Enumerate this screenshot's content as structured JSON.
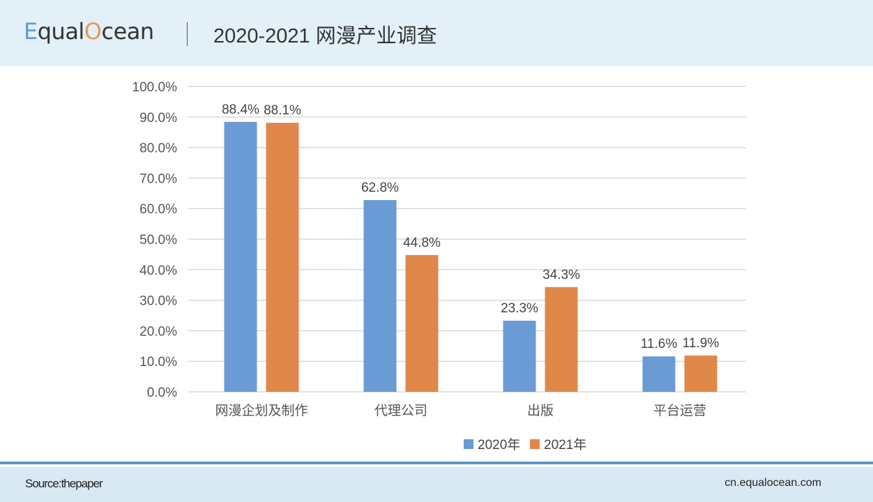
{
  "header": {
    "logo_text": "EqualOcean",
    "title": "2020-2021 网漫产业调查"
  },
  "footer": {
    "source": "Source:thepaper",
    "site": "cn.equalocean.com"
  },
  "colors": {
    "series_2020": "#6a9bd4",
    "series_2021": "#e0874a",
    "grid": "#d9d9d9"
  },
  "chart_data": {
    "type": "bar",
    "categories": [
      "网漫企划及制作",
      "代理公司",
      "出版",
      "平台运营"
    ],
    "series": [
      {
        "name": "2020年",
        "values": [
          88.4,
          62.8,
          23.3,
          11.6
        ],
        "labels": [
          "88.4%",
          "62.8%",
          "23.3%",
          "11.6%"
        ]
      },
      {
        "name": "2021年",
        "values": [
          88.1,
          44.8,
          34.3,
          11.9
        ],
        "labels": [
          "88.1%",
          "44.8%",
          "34.3%",
          "11.9%"
        ]
      }
    ],
    "ylim": [
      0,
      100
    ],
    "yticks": [
      "0.0%",
      "10.0%",
      "20.0%",
      "30.0%",
      "40.0%",
      "50.0%",
      "60.0%",
      "70.0%",
      "80.0%",
      "90.0%",
      "100.0%"
    ],
    "grid": true,
    "legend": "bottom"
  }
}
